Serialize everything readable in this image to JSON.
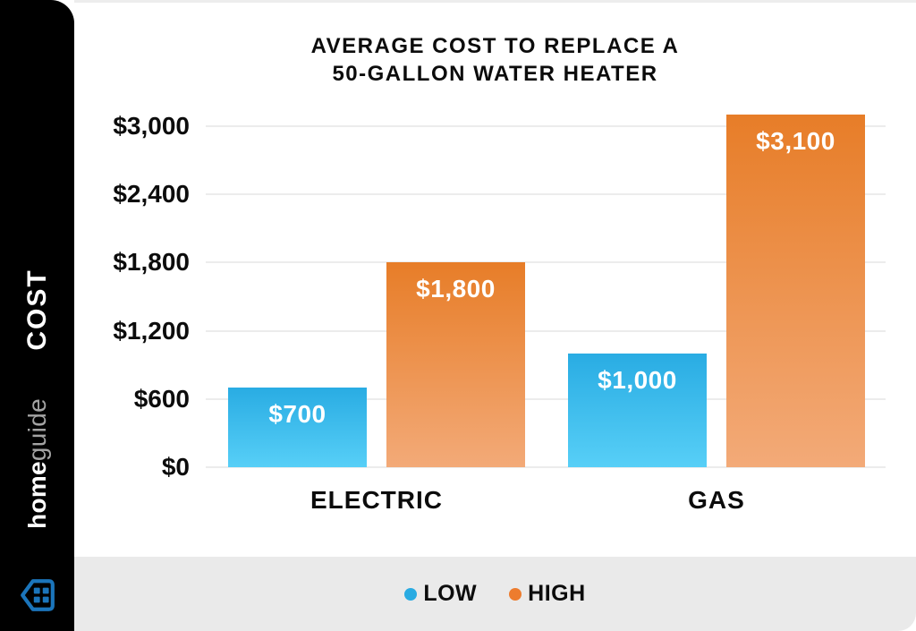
{
  "sidebar": {
    "axis_title": "COST",
    "brand_home": "home",
    "brand_guide": "guide",
    "brand_blue": "#1b75bb"
  },
  "chart": {
    "title_line1": "AVERAGE COST TO REPLACE A",
    "title_line2": "50-GALLON WATER HEATER"
  },
  "legend": {
    "items": [
      {
        "label": "LOW",
        "color": "#29abe2"
      },
      {
        "label": "HIGH",
        "color": "#ed7c2e"
      }
    ]
  },
  "chart_data": {
    "type": "bar",
    "title": "AVERAGE COST TO REPLACE A 50-GALLON WATER HEATER",
    "categories": [
      "ELECTRIC",
      "GAS"
    ],
    "series": [
      {
        "name": "LOW",
        "values": [
          700,
          1000
        ],
        "labels": [
          "$700",
          "$1,000"
        ],
        "color_top": "#29ace3",
        "color_bottom": "#57cff7"
      },
      {
        "name": "HIGH",
        "values": [
          1800,
          3100
        ],
        "labels": [
          "$1,800",
          "$3,100"
        ],
        "color_top": "#e77d28",
        "color_bottom": "#f3aa78"
      }
    ],
    "ylabel": "COST",
    "xlabel": "",
    "ylim": [
      0,
      3200
    ],
    "y_ticks": [
      {
        "label": "$0",
        "value": 0
      },
      {
        "label": "$600",
        "value": 600
      },
      {
        "label": "$1,200",
        "value": 1200
      },
      {
        "label": "$1,800",
        "value": 1800
      },
      {
        "label": "$2,400",
        "value": 2400
      },
      {
        "label": "$3,000",
        "value": 3000
      }
    ],
    "grid": "horizontal",
    "legend_position": "bottom"
  }
}
